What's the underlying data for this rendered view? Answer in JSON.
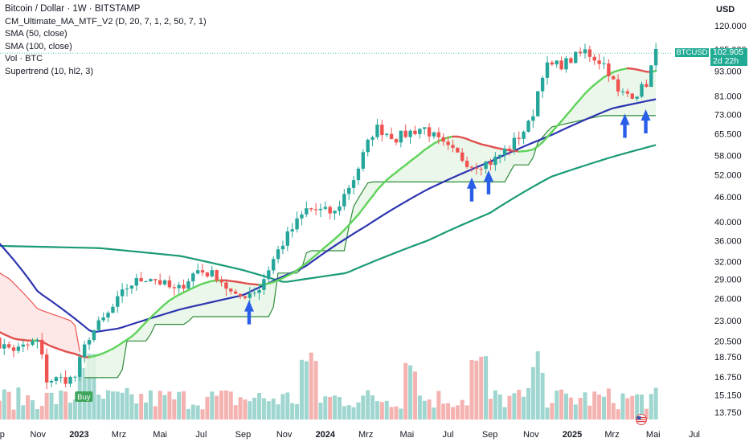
{
  "header": {
    "title": "Bitcoin / Dollar · 1W · BITSTAMP",
    "indicators": [
      "CM_Ultimate_MA_MTF_V2 (D, 20, 7, 1, 2, 50, 7, 1)",
      "SMA (50, close)",
      "SMA (100, close)",
      "Vol · BTC",
      "Supertrend (10, hl2, 3)"
    ],
    "currency": "USD"
  },
  "price_tag": {
    "symbol": "BTCUSD",
    "price": "102.905",
    "countdown": "2d 22h"
  },
  "buy_label": "Buy",
  "colors": {
    "up": "#26a69a",
    "down": "#ef5350",
    "sma50": "#2d35b0",
    "sma100": "#1a9a76",
    "supertrend": "#2e8b3a",
    "ma_up": "#5fd35a",
    "ma_down": "#e0514f",
    "fill_up": "#e8f6e6",
    "fill_down": "#fde3e3",
    "arrow": "#2a5ee8"
  },
  "chart_data": {
    "type": "candlestick",
    "y_scale": "log",
    "y_ticks": [
      "120.000",
      "105.000",
      "93.000",
      "81.000",
      "73.000",
      "65.500",
      "58.000",
      "52.000",
      "46.000",
      "40.000",
      "36.000",
      "32.000",
      "29.000",
      "26.000",
      "23.000",
      "20.500",
      "18.750",
      "16.750",
      "15.150",
      "13.750"
    ],
    "x_ticks": [
      "Sep",
      "Nov",
      "2023",
      "Mrz",
      "Mai",
      "Jul",
      "Sep",
      "Nov",
      "2024",
      "Mrz",
      "Mai",
      "Jul",
      "Sep",
      "Nov",
      "2025",
      "Mrz",
      "Mai",
      "Jul"
    ],
    "anchors": [
      [
        "2022-08-15",
        23.5
      ],
      [
        "2022-09-05",
        20.0
      ],
      [
        "2022-10-01",
        19.5
      ],
      [
        "2022-11-01",
        20.5
      ],
      [
        "2022-11-14",
        16.5
      ],
      [
        "2022-12-25",
        16.6
      ],
      [
        "2023-01-15",
        21.0
      ],
      [
        "2023-02-15",
        24.0
      ],
      [
        "2023-03-15",
        28.0
      ],
      [
        "2023-04-15",
        29.5
      ],
      [
        "2023-05-25",
        27.0
      ],
      [
        "2023-06-25",
        30.5
      ],
      [
        "2023-07-25",
        29.5
      ],
      [
        "2023-08-20",
        26.0
      ],
      [
        "2023-09-25",
        27.5
      ],
      [
        "2023-10-25",
        34.5
      ],
      [
        "2023-12-05",
        43.0
      ],
      [
        "2024-01-15",
        42.0
      ],
      [
        "2024-02-15",
        52.0
      ],
      [
        "2024-03-15",
        68.0
      ],
      [
        "2024-04-15",
        64.0
      ],
      [
        "2024-05-25",
        68.0
      ],
      [
        "2024-06-25",
        61.0
      ],
      [
        "2024-08-05",
        55.0
      ],
      [
        "2024-09-05",
        56.0
      ],
      [
        "2024-10-05",
        62.0
      ],
      [
        "2024-11-01",
        70.0
      ],
      [
        "2024-11-20",
        95.0
      ],
      [
        "2024-12-20",
        97.0
      ],
      [
        "2025-01-20",
        104.0
      ],
      [
        "2025-02-20",
        96.0
      ],
      [
        "2025-03-10",
        82.0
      ],
      [
        "2025-04-05",
        82.0
      ],
      [
        "2025-04-20",
        86.0
      ],
      [
        "2025-05-05",
        102.9
      ]
    ],
    "sma50_anchors": [
      [
        "2022-08-15",
        38.5
      ],
      [
        "2022-11-01",
        27.0
      ],
      [
        "2023-01-20",
        21.5
      ],
      [
        "2023-03-01",
        22.0
      ],
      [
        "2023-06-01",
        24.5
      ],
      [
        "2023-09-01",
        26.5
      ],
      [
        "2023-12-01",
        31.0
      ],
      [
        "2024-03-01",
        39.0
      ],
      [
        "2024-06-01",
        48.0
      ],
      [
        "2024-09-01",
        56.0
      ],
      [
        "2024-12-01",
        65.0
      ],
      [
        "2025-03-01",
        75.5
      ],
      [
        "2025-05-05",
        79.5
      ]
    ],
    "sma100_anchors": [
      [
        "2022-08-15",
        35.0
      ],
      [
        "2023-02-01",
        34.5
      ],
      [
        "2023-06-01",
        33.0
      ],
      [
        "2023-09-01",
        30.5
      ],
      [
        "2023-11-01",
        28.5
      ],
      [
        "2024-02-01",
        30.0
      ],
      [
        "2024-06-01",
        36.0
      ],
      [
        "2024-09-01",
        42.0
      ],
      [
        "2024-12-01",
        51.5
      ],
      [
        "2025-03-01",
        57.5
      ],
      [
        "2025-05-05",
        61.5
      ]
    ],
    "supertrend_anchors": [
      [
        "2022-08-15",
        31.5
      ],
      [
        "2022-09-20",
        29.0
      ],
      [
        "2022-11-01",
        24.5
      ],
      [
        "2022-12-25",
        22.8
      ],
      [
        "2023-01-08",
        16.7
      ],
      [
        "2023-03-05",
        16.7
      ],
      [
        "2023-03-10",
        20.5
      ],
      [
        "2023-04-15",
        20.5
      ],
      [
        "2023-04-20",
        22.5
      ],
      [
        "2023-06-10",
        22.5
      ],
      [
        "2023-06-15",
        23.5
      ],
      [
        "2023-10-15",
        23.5
      ],
      [
        "2023-10-20",
        30.0
      ],
      [
        "2023-11-25",
        30.0
      ],
      [
        "2023-12-05",
        34.0
      ],
      [
        "2024-01-30",
        34.0
      ],
      [
        "2024-02-10",
        43.0
      ],
      [
        "2024-03-05",
        50.0
      ],
      [
        "2024-09-25",
        50.0
      ],
      [
        "2024-10-05",
        55.0
      ],
      [
        "2024-11-01",
        55.0
      ],
      [
        "2024-11-10",
        62.0
      ],
      [
        "2024-12-01",
        68.0
      ],
      [
        "2025-02-15",
        72.5
      ],
      [
        "2025-05-05",
        72.5
      ]
    ],
    "supertrend_switch_date": "2023-01-08",
    "arrows": [
      "2023-09-10",
      "2024-08-05",
      "2024-08-30",
      "2025-03-20",
      "2025-04-20"
    ],
    "buy_signal_date": "2023-01-08"
  }
}
